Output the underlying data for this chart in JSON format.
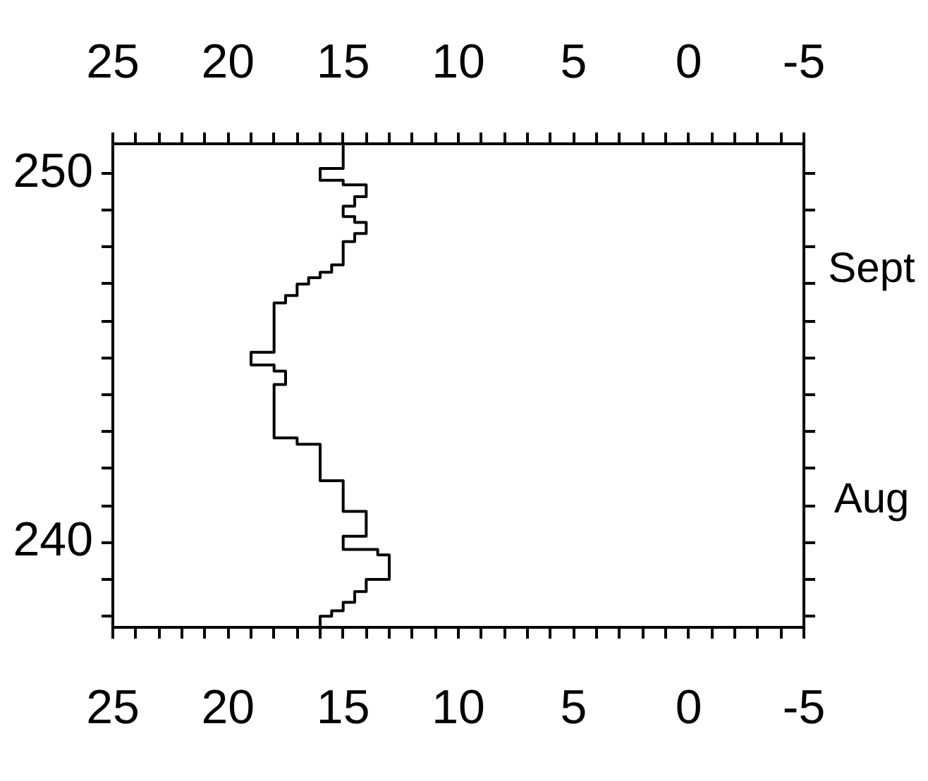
{
  "chart_data": {
    "type": "step",
    "orientation": "horizontal",
    "color": "#000000",
    "x": [
      237.7,
      238.0,
      238.15,
      238.38,
      238.67,
      239.0,
      239.66,
      239.81,
      240.17,
      240.84,
      241.67,
      242.66,
      242.83,
      244.28,
      244.64,
      244.81,
      245.15,
      246.49,
      246.69,
      247.0,
      247.17,
      247.32,
      247.52,
      248.15,
      248.37,
      248.67,
      248.83,
      249.11,
      249.37,
      249.69,
      249.81,
      250.13,
      250.8
    ],
    "values": [
      16,
      15.5,
      15,
      14.5,
      14,
      13,
      13.5,
      15,
      14,
      15,
      16,
      17,
      18,
      17.5,
      18,
      19,
      18,
      17.5,
      17,
      16.5,
      16,
      15.5,
      15,
      14.5,
      14,
      14.5,
      15,
      14.5,
      14,
      15,
      16,
      15,
      15
    ],
    "ylim": [
      237.7,
      250.8
    ],
    "yticks": [
      {
        "value": 238,
        "label": null
      },
      {
        "value": 239,
        "label": null
      },
      240,
      {
        "value": 241,
        "label": null
      },
      {
        "value": 242,
        "label": null
      },
      {
        "value": 243,
        "label": null
      },
      {
        "value": 244,
        "label": null
      },
      {
        "value": 245,
        "label": null
      },
      {
        "value": 246,
        "label": null
      },
      {
        "value": 247,
        "label": null
      },
      {
        "value": 248,
        "label": null
      },
      {
        "value": 249,
        "label": null
      },
      250
    ],
    "xlim": [
      25,
      -5
    ],
    "xticks": [
      25,
      {
        "value": 24,
        "label": null
      },
      {
        "value": 23,
        "label": null
      },
      {
        "value": 22,
        "label": null
      },
      {
        "value": 21,
        "label": null
      },
      20,
      {
        "value": 19,
        "label": null
      },
      {
        "value": 18,
        "label": null
      },
      {
        "value": 17,
        "label": null
      },
      {
        "value": 16,
        "label": null
      },
      15,
      {
        "value": 14,
        "label": null
      },
      {
        "value": 13,
        "label": null
      },
      {
        "value": 12,
        "label": null
      },
      {
        "value": 11,
        "label": null
      },
      10,
      {
        "value": 9,
        "label": null
      },
      {
        "value": 8,
        "label": null
      },
      {
        "value": 7,
        "label": null
      },
      {
        "value": 6,
        "label": null
      },
      5,
      {
        "value": 4,
        "label": null
      },
      {
        "value": 3,
        "label": null
      },
      {
        "value": 2,
        "label": null
      },
      {
        "value": 1,
        "label": null
      },
      0,
      {
        "value": -1,
        "label": null
      },
      {
        "value": -2,
        "label": null
      },
      {
        "value": -3,
        "label": null
      },
      {
        "value": -4,
        "label": null
      },
      -5
    ],
    "x2lim": [
      25,
      -5
    ],
    "x2ticks": [
      25,
      {
        "value": 24,
        "label": null
      },
      {
        "value": 23,
        "label": null
      },
      {
        "value": 22,
        "label": null
      },
      {
        "value": 21,
        "label": null
      },
      20,
      {
        "value": 19,
        "label": null
      },
      {
        "value": 18,
        "label": null
      },
      {
        "value": 17,
        "label": null
      },
      {
        "value": 16,
        "label": null
      },
      15,
      {
        "value": 14,
        "label": null
      },
      {
        "value": 13,
        "label": null
      },
      {
        "value": 12,
        "label": null
      },
      {
        "value": 11,
        "label": null
      },
      10,
      {
        "value": 9,
        "label": null
      },
      {
        "value": 8,
        "label": null
      },
      {
        "value": 7,
        "label": null
      },
      {
        "value": 6,
        "label": null
      },
      5,
      {
        "value": 4,
        "label": null
      },
      {
        "value": 3,
        "label": null
      },
      {
        "value": 2,
        "label": null
      },
      {
        "value": 1,
        "label": null
      },
      0,
      {
        "value": -1,
        "label": null
      },
      {
        "value": -2,
        "label": null
      },
      {
        "value": -3,
        "label": null
      },
      {
        "value": -4,
        "label": null
      },
      -5
    ],
    "annotations": [
      "Aug",
      "Sept"
    ],
    "grid": false,
    "legend": false
  }
}
